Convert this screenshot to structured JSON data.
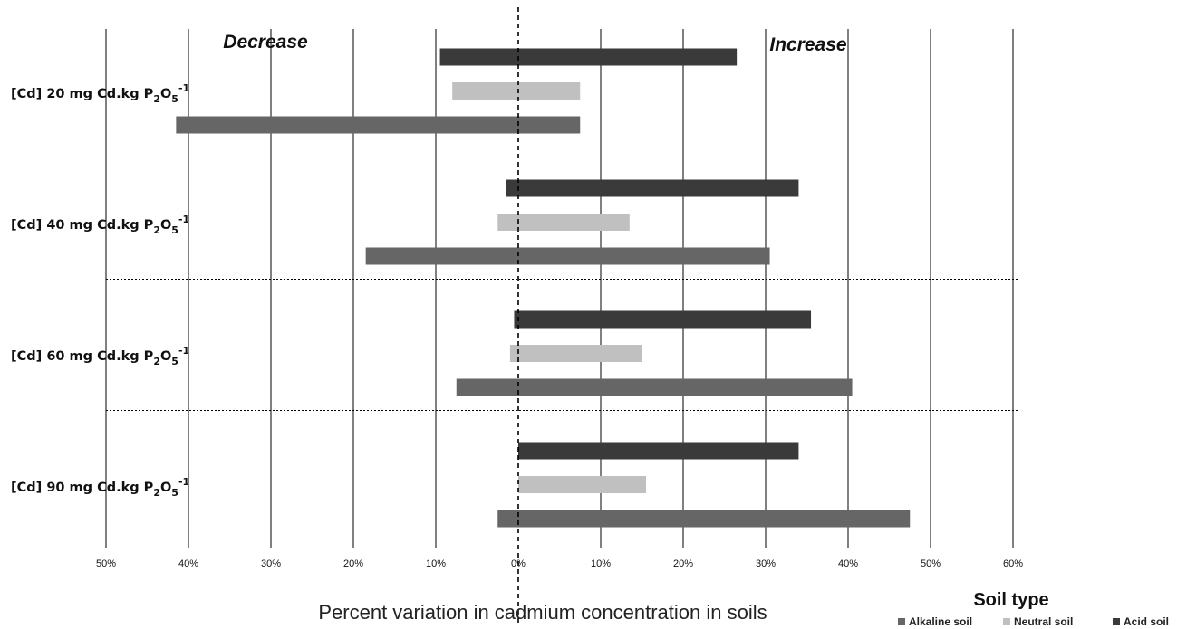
{
  "chart_data": {
    "type": "bar",
    "orientation": "horizontal",
    "categories": [
      {
        "prefix": "[Cd] 20 mg Cd.kg P",
        "sub": "2",
        "mid": "O",
        "sub2": "5",
        "sup": "-1"
      },
      {
        "prefix": "[Cd] 40 mg Cd.kg P",
        "sub": "2",
        "mid": "O",
        "sub2": "5",
        "sup": "-1"
      },
      {
        "prefix": "[Cd] 60 mg Cd.kg P",
        "sub": "2",
        "mid": "O",
        "sub2": "5",
        "sup": "-1"
      },
      {
        "prefix": "[Cd] 90 mg Cd.kg P",
        "sub": "2",
        "mid": "O",
        "sub2": "5",
        "sup": "-1"
      }
    ],
    "series": [
      {
        "name": "Acid soil",
        "color": "#3a3a3a",
        "ranges": [
          [
            -9.5,
            26.5
          ],
          [
            -1.5,
            34
          ],
          [
            -0.5,
            35.5
          ],
          [
            0,
            34
          ]
        ]
      },
      {
        "name": "Neutral soil",
        "color": "#c0c0c0",
        "ranges": [
          [
            -8,
            7.5
          ],
          [
            -2.5,
            13.5
          ],
          [
            -1,
            15
          ],
          [
            0,
            15.5
          ]
        ]
      },
      {
        "name": "Alkaline soil",
        "color": "#666666",
        "ranges": [
          [
            -41.5,
            7.5
          ],
          [
            -18.5,
            30.5
          ],
          [
            -7.5,
            40.5
          ],
          [
            -2.5,
            47.5
          ]
        ]
      }
    ],
    "xlim": [
      -50,
      60
    ],
    "ticks": [
      -50,
      -40,
      -30,
      -20,
      -10,
      0,
      10,
      20,
      30,
      40,
      50,
      60
    ],
    "tick_labels": [
      "50%",
      "40%",
      "30%",
      "20%",
      "10%",
      "0%",
      "10%",
      "20%",
      "30%",
      "40%",
      "50%",
      "60%"
    ],
    "xlabel": "Percent variation in cadmium concentration in soils",
    "left_annotation": "Decrease",
    "right_annotation": "Increase",
    "legend": {
      "title": "Soil type",
      "placement": "bottom-right",
      "items": [
        {
          "name": "Alkaline soil",
          "color": "#666666"
        },
        {
          "name": "Neutral soil",
          "color": "#c0c0c0"
        },
        {
          "name": "Acid soil",
          "color": "#3a3a3a"
        }
      ]
    },
    "grid": true
  }
}
